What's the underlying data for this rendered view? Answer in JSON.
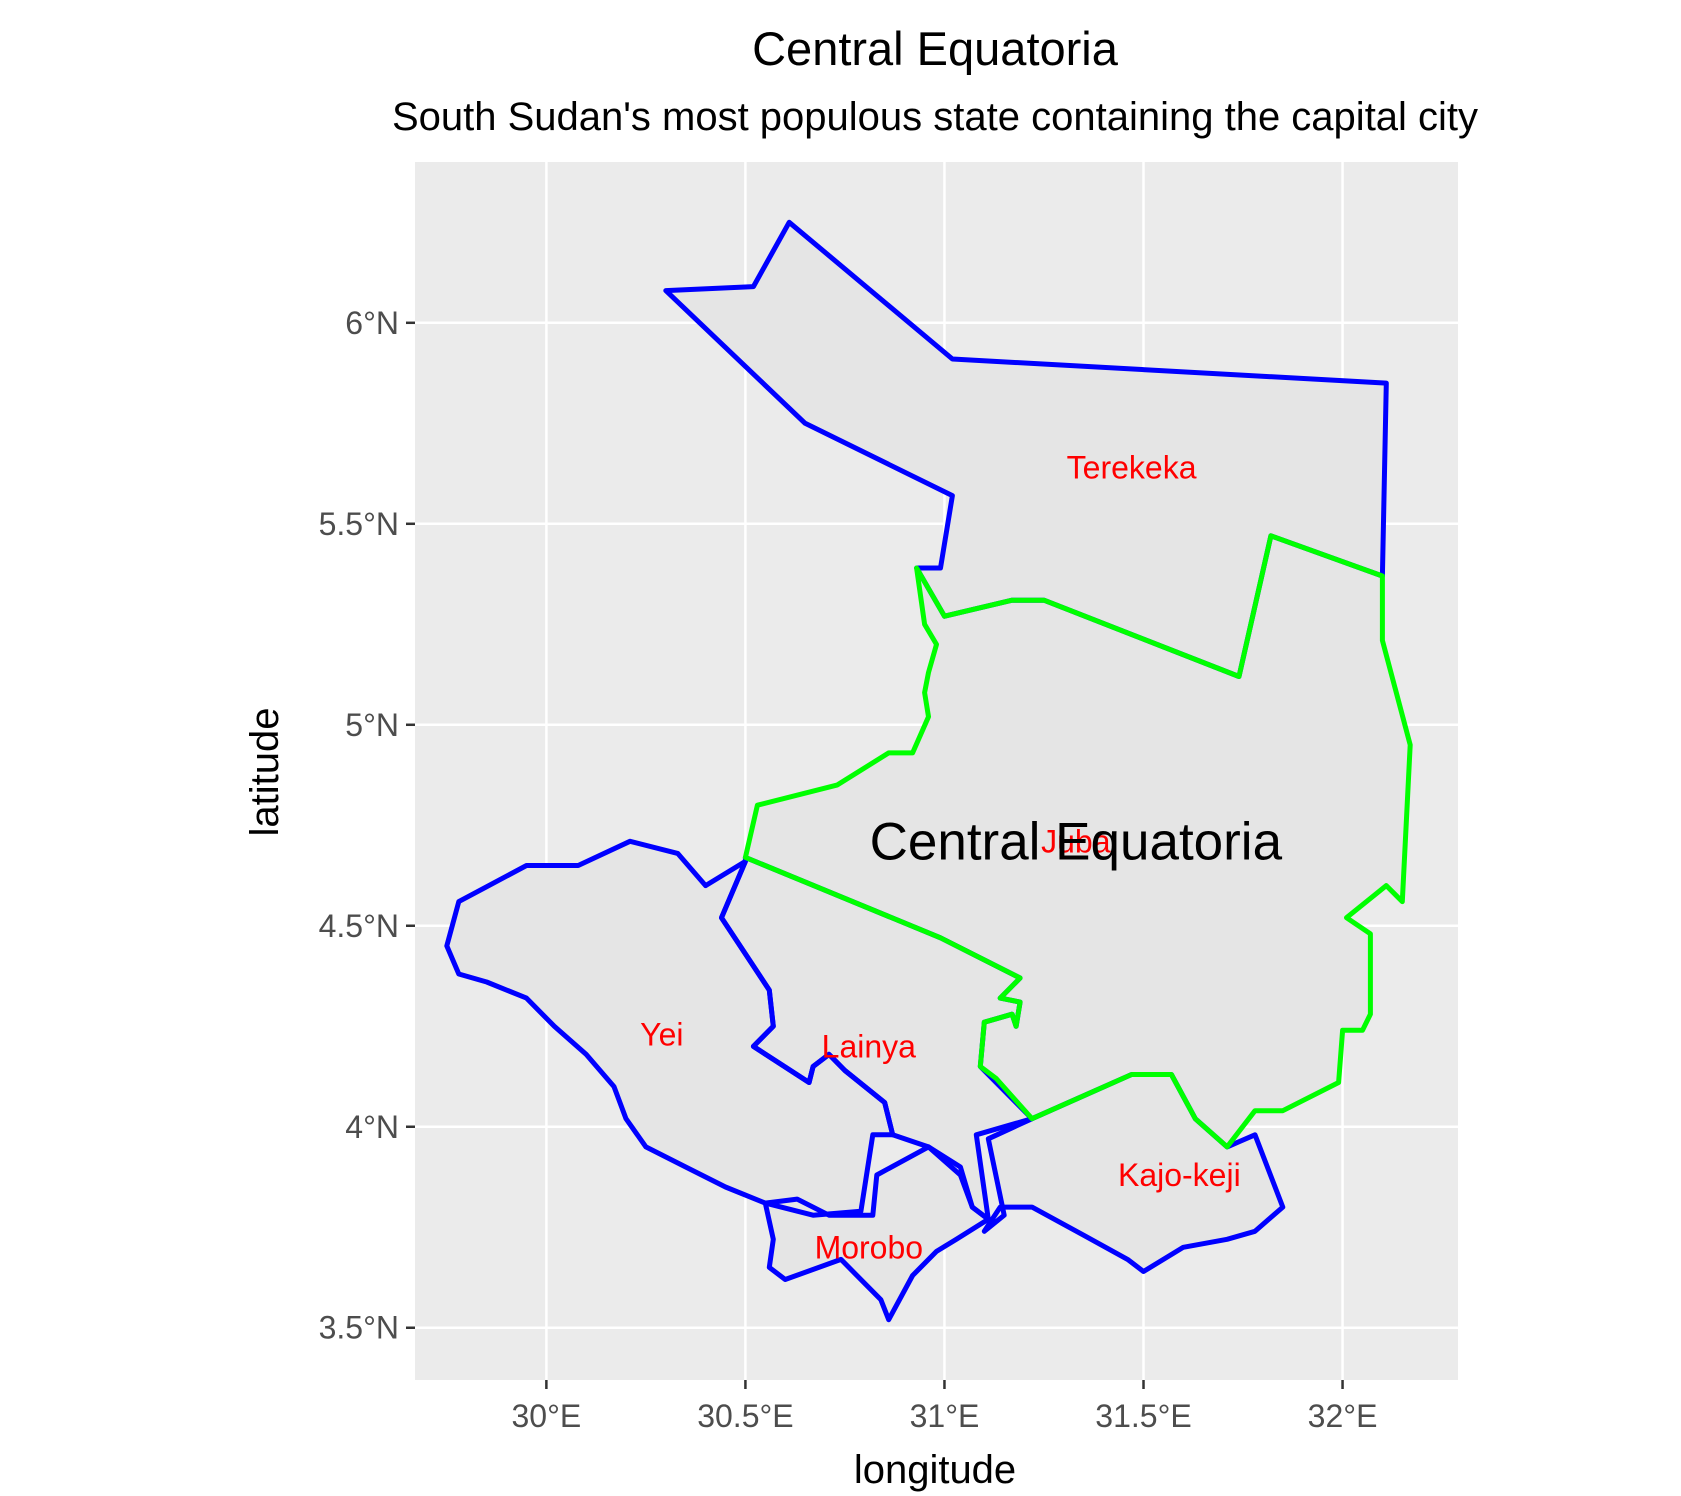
{
  "title": "Central Equatoria",
  "subtitle": "South Sudan's most populous state containing the capital city",
  "map": {
    "x_axis": {
      "label": "longitude",
      "range": [
        29.67,
        32.29
      ],
      "ticks": [
        {
          "value": 30.0,
          "label": "30°E"
        },
        {
          "value": 30.5,
          "label": "30.5°E"
        },
        {
          "value": 31.0,
          "label": "31°E"
        },
        {
          "value": 31.5,
          "label": "31.5°E"
        },
        {
          "value": 32.0,
          "label": "32°E"
        }
      ]
    },
    "y_axis": {
      "label": "latitude",
      "range": [
        3.37,
        6.4
      ],
      "ticks": [
        {
          "value": 3.5,
          "label": "3.5°N"
        },
        {
          "value": 4.0,
          "label": "4°N"
        },
        {
          "value": 4.5,
          "label": "4.5°N"
        },
        {
          "value": 5.0,
          "label": "5°N"
        },
        {
          "value": 5.5,
          "label": "5.5°N"
        },
        {
          "value": 6.0,
          "label": "6°N"
        }
      ]
    },
    "colors": {
      "panel": "#ebebeb",
      "grid": "#ffffff",
      "fill": "#e5e5e5",
      "county_border": "#0000ff",
      "highlight_border": "#00ff00",
      "label": "#ff0000"
    },
    "highlighted_county": "Juba",
    "state_label": {
      "text": "Central Equatoria",
      "lon": 31.33,
      "lat": 4.71
    },
    "counties": [
      {
        "name": "Terekeka",
        "label_lon": 31.47,
        "label_lat": 5.64,
        "outline": [
          [
            30.3,
            6.08
          ],
          [
            30.52,
            6.09
          ],
          [
            30.61,
            6.25
          ],
          [
            31.02,
            5.91
          ],
          [
            32.11,
            5.85
          ],
          [
            32.1,
            5.37
          ],
          [
            31.82,
            5.47
          ],
          [
            31.74,
            5.12
          ],
          [
            31.25,
            5.31
          ],
          [
            31.17,
            5.31
          ],
          [
            31.0,
            5.27
          ],
          [
            30.93,
            5.39
          ],
          [
            30.99,
            5.39
          ],
          [
            31.02,
            5.57
          ],
          [
            30.65,
            5.75
          ],
          [
            30.3,
            6.08
          ]
        ]
      },
      {
        "name": "Juba",
        "label_lon": 31.33,
        "label_lat": 4.71,
        "outline": [
          [
            30.93,
            5.39
          ],
          [
            31.0,
            5.27
          ],
          [
            31.17,
            5.31
          ],
          [
            31.25,
            5.31
          ],
          [
            31.74,
            5.12
          ],
          [
            31.82,
            5.47
          ],
          [
            32.1,
            5.37
          ],
          [
            32.1,
            5.21
          ],
          [
            32.17,
            4.95
          ],
          [
            32.15,
            4.56
          ],
          [
            32.11,
            4.6
          ],
          [
            32.01,
            4.52
          ],
          [
            32.07,
            4.48
          ],
          [
            32.07,
            4.28
          ],
          [
            32.05,
            4.24
          ],
          [
            32.0,
            4.24
          ],
          [
            31.99,
            4.11
          ],
          [
            31.85,
            4.04
          ],
          [
            31.78,
            4.04
          ],
          [
            31.71,
            3.95
          ],
          [
            31.63,
            4.02
          ],
          [
            31.57,
            4.13
          ],
          [
            31.47,
            4.13
          ],
          [
            31.22,
            4.02
          ],
          [
            31.13,
            4.12
          ],
          [
            31.09,
            4.15
          ],
          [
            31.1,
            4.26
          ],
          [
            31.17,
            4.28
          ],
          [
            31.18,
            4.25
          ],
          [
            31.19,
            4.31
          ],
          [
            31.14,
            4.32
          ],
          [
            31.19,
            4.37
          ],
          [
            30.99,
            4.47
          ],
          [
            30.5,
            4.67
          ],
          [
            30.53,
            4.8
          ],
          [
            30.73,
            4.85
          ],
          [
            30.86,
            4.93
          ],
          [
            30.92,
            4.93
          ],
          [
            30.96,
            5.02
          ],
          [
            30.95,
            5.08
          ],
          [
            30.96,
            5.13
          ],
          [
            30.98,
            5.2
          ],
          [
            30.95,
            5.25
          ],
          [
            30.93,
            5.39
          ]
        ]
      },
      {
        "name": "Yei",
        "label_lon": 30.29,
        "label_lat": 4.23,
        "outline": [
          [
            29.78,
            4.56
          ],
          [
            29.95,
            4.65
          ],
          [
            30.08,
            4.65
          ],
          [
            30.21,
            4.71
          ],
          [
            30.33,
            4.68
          ],
          [
            30.4,
            4.6
          ],
          [
            30.5,
            4.66
          ],
          [
            30.44,
            4.52
          ],
          [
            30.52,
            4.4
          ],
          [
            30.56,
            4.34
          ],
          [
            30.57,
            4.25
          ],
          [
            30.52,
            4.2
          ],
          [
            30.66,
            4.11
          ],
          [
            30.67,
            4.15
          ],
          [
            30.71,
            4.18
          ],
          [
            30.75,
            4.14
          ],
          [
            30.85,
            4.06
          ],
          [
            30.87,
            3.98
          ],
          [
            30.82,
            3.98
          ],
          [
            30.79,
            3.79
          ],
          [
            30.67,
            3.78
          ],
          [
            30.55,
            3.81
          ],
          [
            30.45,
            3.85
          ],
          [
            30.35,
            3.9
          ],
          [
            30.25,
            3.95
          ],
          [
            30.2,
            4.02
          ],
          [
            30.17,
            4.1
          ],
          [
            30.1,
            4.18
          ],
          [
            30.02,
            4.25
          ],
          [
            29.95,
            4.32
          ],
          [
            29.85,
            4.36
          ],
          [
            29.78,
            4.38
          ],
          [
            29.75,
            4.45
          ],
          [
            29.78,
            4.56
          ]
        ]
      },
      {
        "name": "Lainya",
        "label_lon": 30.81,
        "label_lat": 4.2,
        "outline": [
          [
            30.5,
            4.66
          ],
          [
            30.44,
            4.52
          ],
          [
            30.52,
            4.4
          ],
          [
            30.56,
            4.34
          ],
          [
            30.57,
            4.25
          ],
          [
            30.52,
            4.2
          ],
          [
            30.66,
            4.11
          ],
          [
            30.67,
            4.15
          ],
          [
            30.71,
            4.18
          ],
          [
            30.75,
            4.14
          ],
          [
            30.85,
            4.06
          ],
          [
            30.87,
            3.98
          ],
          [
            30.96,
            3.95
          ],
          [
            31.04,
            3.9
          ],
          [
            31.07,
            3.8
          ],
          [
            31.11,
            3.77
          ],
          [
            31.08,
            3.98
          ],
          [
            31.22,
            4.02
          ],
          [
            31.09,
            4.15
          ],
          [
            31.1,
            4.26
          ],
          [
            31.17,
            4.28
          ],
          [
            31.18,
            4.25
          ],
          [
            31.19,
            4.31
          ],
          [
            31.14,
            4.32
          ],
          [
            31.19,
            4.37
          ],
          [
            30.99,
            4.47
          ],
          [
            30.5,
            4.67
          ],
          [
            30.5,
            4.66
          ]
        ]
      },
      {
        "name": "Morobo",
        "label_lon": 30.81,
        "label_lat": 3.7,
        "outline": [
          [
            30.55,
            3.81
          ],
          [
            30.63,
            3.82
          ],
          [
            30.71,
            3.78
          ],
          [
            30.82,
            3.78
          ],
          [
            30.83,
            3.88
          ],
          [
            30.96,
            3.95
          ],
          [
            31.04,
            3.88
          ],
          [
            31.07,
            3.8
          ],
          [
            31.11,
            3.77
          ],
          [
            31.03,
            3.72
          ],
          [
            30.98,
            3.69
          ],
          [
            30.92,
            3.63
          ],
          [
            30.86,
            3.52
          ],
          [
            30.84,
            3.57
          ],
          [
            30.78,
            3.63
          ],
          [
            30.74,
            3.67
          ],
          [
            30.6,
            3.62
          ],
          [
            30.56,
            3.65
          ],
          [
            30.57,
            3.72
          ],
          [
            30.55,
            3.81
          ]
        ]
      },
      {
        "name": "Kajo-keji",
        "label_lon": 31.59,
        "label_lat": 3.88,
        "outline": [
          [
            31.11,
            3.97
          ],
          [
            31.22,
            4.02
          ],
          [
            31.47,
            4.13
          ],
          [
            31.57,
            4.13
          ],
          [
            31.63,
            4.02
          ],
          [
            31.71,
            3.95
          ],
          [
            31.78,
            3.98
          ],
          [
            31.85,
            3.8
          ],
          [
            31.78,
            3.74
          ],
          [
            31.71,
            3.72
          ],
          [
            31.6,
            3.7
          ],
          [
            31.5,
            3.64
          ],
          [
            31.46,
            3.67
          ],
          [
            31.35,
            3.73
          ],
          [
            31.22,
            3.8
          ],
          [
            31.14,
            3.8
          ],
          [
            31.1,
            3.74
          ],
          [
            31.15,
            3.78
          ],
          [
            31.11,
            3.97
          ]
        ]
      }
    ]
  }
}
